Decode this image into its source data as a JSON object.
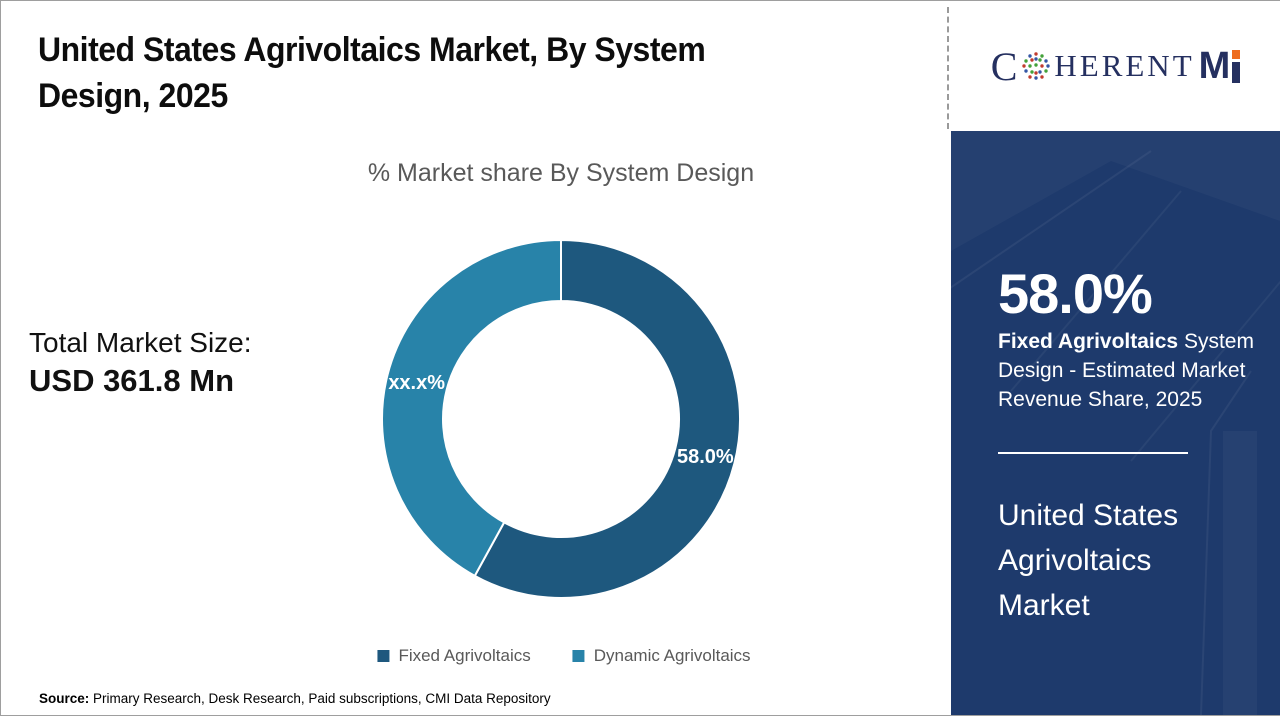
{
  "title": {
    "line1": "United States Agrivoltaics Market, By System",
    "line2": "Design, 2025"
  },
  "chart_data": {
    "type": "pie",
    "donut": true,
    "title": "% Market share By System Design",
    "categories": [
      "Fixed Agrivoltaics",
      "Dynamic Agrivoltaics"
    ],
    "values": [
      58.0,
      42.0
    ],
    "slice_labels": [
      "58.0%",
      "xx.x%"
    ],
    "colors": [
      "#1e587e",
      "#2883a9"
    ],
    "start_angle_deg": 0,
    "direction": "clockwise",
    "legend_position": "bottom"
  },
  "stats": {
    "total_label": "Total Market Size:",
    "total_value": "USD 361.8 Mn"
  },
  "panel": {
    "bg_color": "#1e3a6c",
    "share_value": "58.0%",
    "desc_bold": "Fixed Agrivoltaics",
    "desc_rest": " System Design - Estimated Market Revenue Share, 2025",
    "market_name": "United States Agrivoltaics Market"
  },
  "logo": {
    "c": "C",
    "rest": "HERENT",
    "m": "M"
  },
  "source": {
    "label": "Source:",
    "text": " Primary Research, Desk Research, Paid subscriptions, CMI Data Repository"
  }
}
